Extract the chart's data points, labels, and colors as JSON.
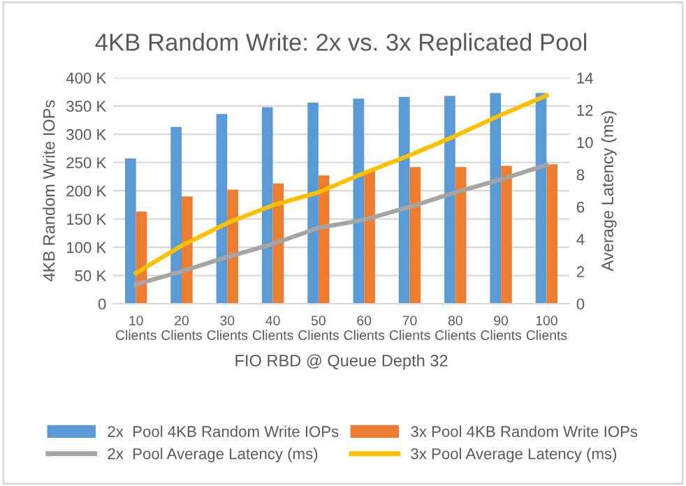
{
  "chart_data": {
    "type": "bar",
    "title": "4KB Random Write: 2x vs. 3x Replicated Pool",
    "xlabel": "FIO RBD @ Queue Depth 32",
    "ylabel": "4KB Random Write IOPs",
    "y2label": "Average Latency (ms)",
    "categories": [
      "10\nClients",
      "20\nClients",
      "30\nClients",
      "40\nClients",
      "50\nClients",
      "60\nClients",
      "70\nClients",
      "80\nClients",
      "90\nClients",
      "100\nClients"
    ],
    "series": [
      {
        "name": "2x  Pool 4KB Random Write IOPs",
        "color": "#5b9bd5",
        "values": [
          257000,
          313000,
          336000,
          348000,
          356000,
          363000,
          366000,
          368000,
          373000,
          373000
        ]
      },
      {
        "name": "3x Pool 4KB Random Write IOPs",
        "color": "#ed7d31",
        "values": [
          163000,
          190000,
          202000,
          213000,
          227000,
          236000,
          242000,
          242000,
          244000,
          247000
        ]
      },
      {
        "name": "2x  Pool Average Latency (ms)",
        "type": "line",
        "axis": "y2",
        "color": "#a5a5a5",
        "values": [
          1.2,
          2.0,
          2.9,
          3.7,
          4.7,
          5.2,
          6.0,
          6.9,
          7.7,
          8.6
        ]
      },
      {
        "name": "3x Pool Average Latency (ms)",
        "type": "line",
        "axis": "y2",
        "color": "#ffc000",
        "values": [
          1.9,
          3.6,
          5.0,
          6.1,
          6.9,
          8.1,
          9.2,
          10.4,
          11.7,
          12.9
        ]
      }
    ],
    "ylim": [
      0,
      400000
    ],
    "yticks": [
      {
        "value": 0,
        "label": "0"
      },
      {
        "value": 50000,
        "label": "50 K"
      },
      {
        "value": 100000,
        "label": "100 K"
      },
      {
        "value": 150000,
        "label": "150 K"
      },
      {
        "value": 200000,
        "label": "200 K"
      },
      {
        "value": 250000,
        "label": "250 K"
      },
      {
        "value": 300000,
        "label": "300 K"
      },
      {
        "value": 350000,
        "label": "350 K"
      },
      {
        "value": 400000,
        "label": "400 K"
      }
    ],
    "y2lim": [
      0,
      14
    ],
    "y2ticks": [
      0,
      2,
      4,
      6,
      8,
      10,
      12,
      14
    ],
    "grid": "y",
    "legend": "bottom",
    "marker": "none",
    "line_style": "solid"
  }
}
